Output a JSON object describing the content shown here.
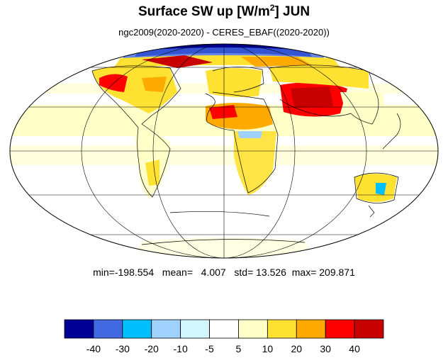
{
  "title": {
    "text": "Surface SW up [W/m",
    "superscript": "2",
    "suffix": "]  JUN"
  },
  "subtitle": "ngc2009(2020-2020) - CERES_EBAF((2020-2020))",
  "stats": {
    "min_label": "min=",
    "min": "-198.554",
    "mean_label": "mean=",
    "mean": "4.007",
    "std_label": "std=",
    "std": "13.526",
    "max_label": "max=",
    "max": "209.871"
  },
  "colorbar": {
    "colors": [
      "#000096",
      "#4169e1",
      "#00bfff",
      "#a0d2ff",
      "#d2f5ff",
      "#ffffff",
      "#ffffc8",
      "#ffe132",
      "#ffaa00",
      "#ff0000",
      "#c80000"
    ],
    "labels": [
      "-40",
      "-30",
      "-20",
      "-10",
      "-5",
      "5",
      "10",
      "20",
      "30",
      "40"
    ]
  },
  "map": {
    "projection": "mollweide",
    "graticule": true,
    "coastlines": true
  }
}
